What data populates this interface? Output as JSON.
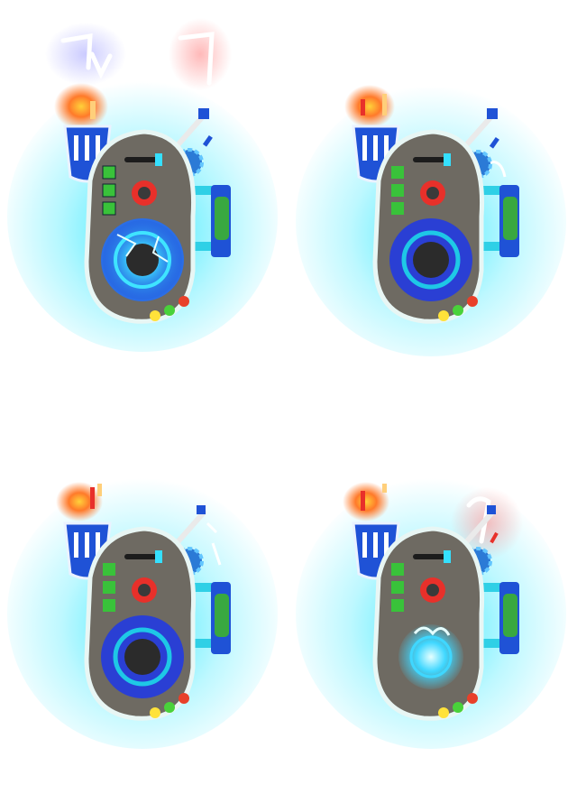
{
  "sprite_sheet": {
    "frames": [
      {
        "id": "frame-1",
        "core_state": "energized",
        "ring_color": "#1f6fff",
        "emitter_glow": true
      },
      {
        "id": "frame-2",
        "core_state": "idle",
        "ring_color": "#2a3fd4",
        "emitter_glow": false
      },
      {
        "id": "frame-3",
        "core_state": "idle",
        "ring_color": "#2a3fd4",
        "emitter_glow": false
      },
      {
        "id": "frame-4",
        "core_state": "energized",
        "ring_color": "#3fd7ff",
        "emitter_glow": true
      }
    ]
  },
  "colors": {
    "aura": "#28e8ff",
    "body": "#6e6a62",
    "body_outline": "#e8f6f4",
    "core_ring": "#2a3fd4",
    "core_inner": "#1ec8e6",
    "red_button": "#e8302a",
    "green_tube": "#39a840",
    "blue_tank": "#1f52d6",
    "flame": "#ff7a2a",
    "indicator_lights": [
      "#ffe23a",
      "#49d23a",
      "#e8402a"
    ]
  }
}
